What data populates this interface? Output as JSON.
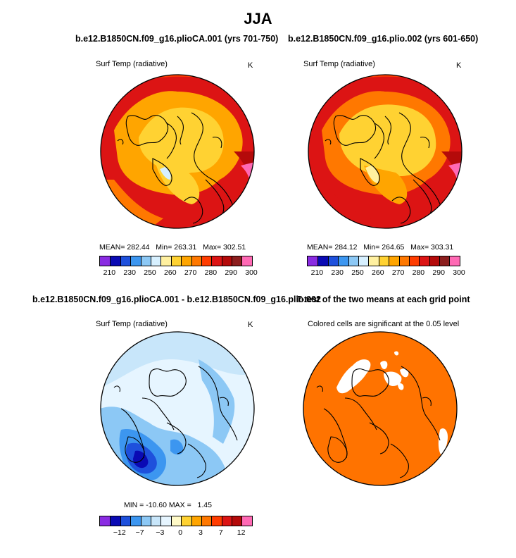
{
  "figure_title": "JJA",
  "panels": [
    {
      "title": "b.e12.B1850CN.f09_g16.plioCA.001 (yrs 701-750)",
      "variable": "Surf Temp (radiative)",
      "units": "K",
      "stats": {
        "mean_label": "MEAN=",
        "mean": "282.44",
        "min_label": "Min=",
        "min": "263.31",
        "max_label": "Max=",
        "max": "302.51"
      }
    },
    {
      "title": "b.e12.B1850CN.f09_g16.plio.002 (yrs 601-650)",
      "variable": "Surf Temp (radiative)",
      "units": "K",
      "stats": {
        "mean_label": "MEAN=",
        "mean": "284.12",
        "min_label": "Min=",
        "min": "264.65",
        "max_label": "Max=",
        "max": "303.31"
      }
    },
    {
      "title": "b.e12.B1850CN.f09_g16.plioCA.001 - b.e12.B1850CN.f09_g16.plio.002",
      "variable": "Surf Temp (radiative)",
      "units": "K",
      "stats": {
        "min_label": "MIN =",
        "min": "-10.60",
        "max_label": "MAX =",
        "max": "1.45"
      }
    },
    {
      "title": "T-test of the two means at each grid point",
      "variable": "Colored cells are significant at the 0.05 level"
    }
  ],
  "colorbar_abs": {
    "labels": [
      "210",
      "230",
      "250",
      "260",
      "270",
      "280",
      "290",
      "300"
    ],
    "colors": [
      "#8a2be2",
      "#0a0ab4",
      "#1e50dc",
      "#3c96f0",
      "#8cc8f5",
      "#d7f0ff",
      "#fff0a0",
      "#ffd232",
      "#ffa500",
      "#ff7800",
      "#ff3c00",
      "#dc1414",
      "#b40a0a",
      "#8c1e1e",
      "#ff69b4"
    ]
  },
  "colorbar_diff": {
    "labels": [
      "−12",
      "−7",
      "−3",
      "0",
      "3",
      "7",
      "12"
    ],
    "colors": [
      "#8a2be2",
      "#0a0ab4",
      "#1e50dc",
      "#3c96f0",
      "#8cc8f5",
      "#c8e6fa",
      "#e6f5ff",
      "#fffac8",
      "#ffd232",
      "#ffa500",
      "#ff7800",
      "#ff3c00",
      "#dc1414",
      "#b40a0a",
      "#ff69b4"
    ]
  }
}
